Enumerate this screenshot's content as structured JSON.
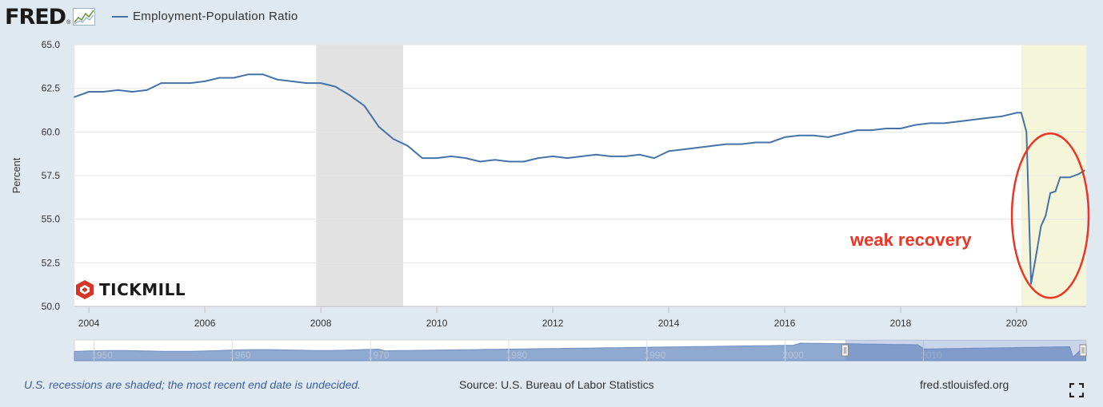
{
  "header": {
    "logo_text": "FRED",
    "logo_reg": "®",
    "legend_label": "Employment-Population Ratio"
  },
  "colors": {
    "series": "#4572a7",
    "recession_shade": "#e2e2e2",
    "undecided_shade": "#f5f5d9",
    "annotation": "#ee3424",
    "navigator_fill": "#8fa9d0",
    "page_bg": "#e1e9f0"
  },
  "chart_data": {
    "type": "line",
    "title": "Employment-Population Ratio",
    "ylabel": "Percent",
    "xlabel": "",
    "xlim": [
      2003.75,
      2021.2
    ],
    "ylim": [
      50.0,
      65.0
    ],
    "yticks": [
      "65.0",
      "62.5",
      "60.0",
      "57.5",
      "55.0",
      "52.5",
      "50.0"
    ],
    "xticks": [
      "2004",
      "2006",
      "2008",
      "2010",
      "2012",
      "2014",
      "2016",
      "2018",
      "2020"
    ],
    "grid": true,
    "recessions": [
      [
        2007.92,
        2009.42
      ]
    ],
    "undecided_recession_start": 2020.08,
    "series": [
      {
        "name": "Employment-Population Ratio",
        "x": [
          2003.75,
          2004.0,
          2004.25,
          2004.5,
          2004.75,
          2005.0,
          2005.25,
          2005.5,
          2005.75,
          2006.0,
          2006.25,
          2006.5,
          2006.75,
          2007.0,
          2007.25,
          2007.5,
          2007.75,
          2008.0,
          2008.25,
          2008.5,
          2008.75,
          2009.0,
          2009.25,
          2009.5,
          2009.75,
          2010.0,
          2010.25,
          2010.5,
          2010.75,
          2011.0,
          2011.25,
          2011.5,
          2011.75,
          2012.0,
          2012.25,
          2012.5,
          2012.75,
          2013.0,
          2013.25,
          2013.5,
          2013.75,
          2014.0,
          2014.25,
          2014.5,
          2014.75,
          2015.0,
          2015.25,
          2015.5,
          2015.75,
          2016.0,
          2016.25,
          2016.5,
          2016.75,
          2017.0,
          2017.25,
          2017.5,
          2017.75,
          2018.0,
          2018.25,
          2018.5,
          2018.75,
          2019.0,
          2019.25,
          2019.5,
          2019.75,
          2020.0,
          2020.08,
          2020.17,
          2020.25,
          2020.33,
          2020.42,
          2020.5,
          2020.58,
          2020.67,
          2020.75,
          2020.83,
          2020.92,
          2021.0,
          2021.08,
          2021.17
        ],
        "values": [
          62.0,
          62.3,
          62.3,
          62.4,
          62.3,
          62.4,
          62.8,
          62.8,
          62.8,
          62.9,
          63.1,
          63.1,
          63.3,
          63.3,
          63.0,
          62.9,
          62.8,
          62.8,
          62.6,
          62.1,
          61.5,
          60.3,
          59.6,
          59.2,
          58.5,
          58.5,
          58.6,
          58.5,
          58.3,
          58.4,
          58.3,
          58.3,
          58.5,
          58.6,
          58.5,
          58.6,
          58.7,
          58.6,
          58.6,
          58.7,
          58.5,
          58.9,
          59.0,
          59.1,
          59.2,
          59.3,
          59.3,
          59.4,
          59.4,
          59.7,
          59.8,
          59.8,
          59.7,
          59.9,
          60.1,
          60.1,
          60.2,
          60.2,
          60.4,
          60.5,
          60.5,
          60.6,
          60.7,
          60.8,
          60.9,
          61.1,
          61.1,
          60.0,
          51.3,
          52.8,
          54.6,
          55.2,
          56.5,
          56.6,
          57.4,
          57.4,
          57.4,
          57.5,
          57.6,
          57.8
        ]
      }
    ],
    "navigator": {
      "xticks": [
        "1950",
        "1960",
        "1970",
        "1980",
        "1990",
        "2000",
        "2010"
      ],
      "selected_range": [
        2003.75,
        2021.2
      ],
      "full_range": [
        1948,
        2021.2
      ]
    },
    "annotations": [
      "weak recovery"
    ]
  },
  "footer": {
    "recession_note": "U.S. recessions are shaded; the most recent end date is undecided.",
    "source": "Source: U.S. Bureau of Labor Statistics",
    "site": "fred.stlouisfed.org"
  },
  "watermark": {
    "text": "TICKMILL"
  }
}
